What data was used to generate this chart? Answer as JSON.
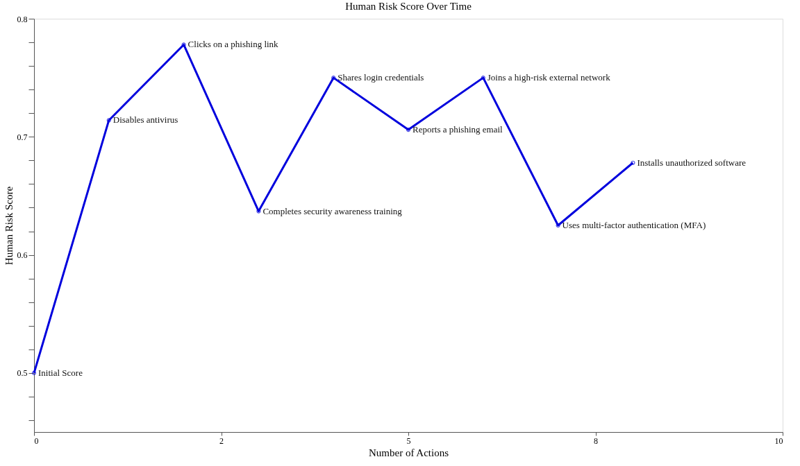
{
  "chart_data": {
    "type": "line",
    "title": "Human Risk Score Over Time",
    "xlabel": "Number of Actions",
    "ylabel": "Human Risk Score",
    "x": [
      0,
      1,
      2,
      3,
      4,
      5,
      6,
      7,
      8
    ],
    "series": [
      {
        "color": "#0000dd",
        "values": [
          0.5,
          0.714,
          0.778,
          0.637,
          0.75,
          0.706,
          0.75,
          0.625,
          0.678
        ],
        "value_labels": [
          "Initial Score",
          "Disables antivirus",
          "Clicks on a phishing link",
          "Completes security awareness training",
          "Shares login credentials",
          "Reports a phishing email",
          "Joins a high-risk external network",
          "Uses multi-factor authentication (MFA)",
          "Installs unauthorized software"
        ]
      }
    ],
    "xlim": [
      0,
      10
    ],
    "xticks": [
      0,
      {
        "value": 2.5,
        "label": "2"
      },
      5,
      {
        "value": 7.5,
        "label": "8"
      },
      10
    ],
    "ylim": [
      0.45,
      0.8
    ],
    "yticks": [
      {
        "value": 0.46,
        "label": null
      },
      {
        "value": 0.48,
        "label": null
      },
      0.5,
      {
        "value": 0.52,
        "label": null
      },
      {
        "value": 0.54,
        "label": null
      },
      {
        "value": 0.56,
        "label": null
      },
      {
        "value": 0.58,
        "label": null
      },
      0.6,
      {
        "value": 0.62,
        "label": null
      },
      {
        "value": 0.64,
        "label": null
      },
      {
        "value": 0.66,
        "label": null
      },
      {
        "value": 0.68,
        "label": null
      },
      0.7,
      {
        "value": 0.72,
        "label": null
      },
      {
        "value": 0.74,
        "label": null
      },
      {
        "value": 0.76,
        "label": null
      },
      {
        "value": 0.78,
        "label": null
      },
      0.8
    ],
    "grid": false,
    "marker": "circle",
    "line_style": "solid"
  }
}
